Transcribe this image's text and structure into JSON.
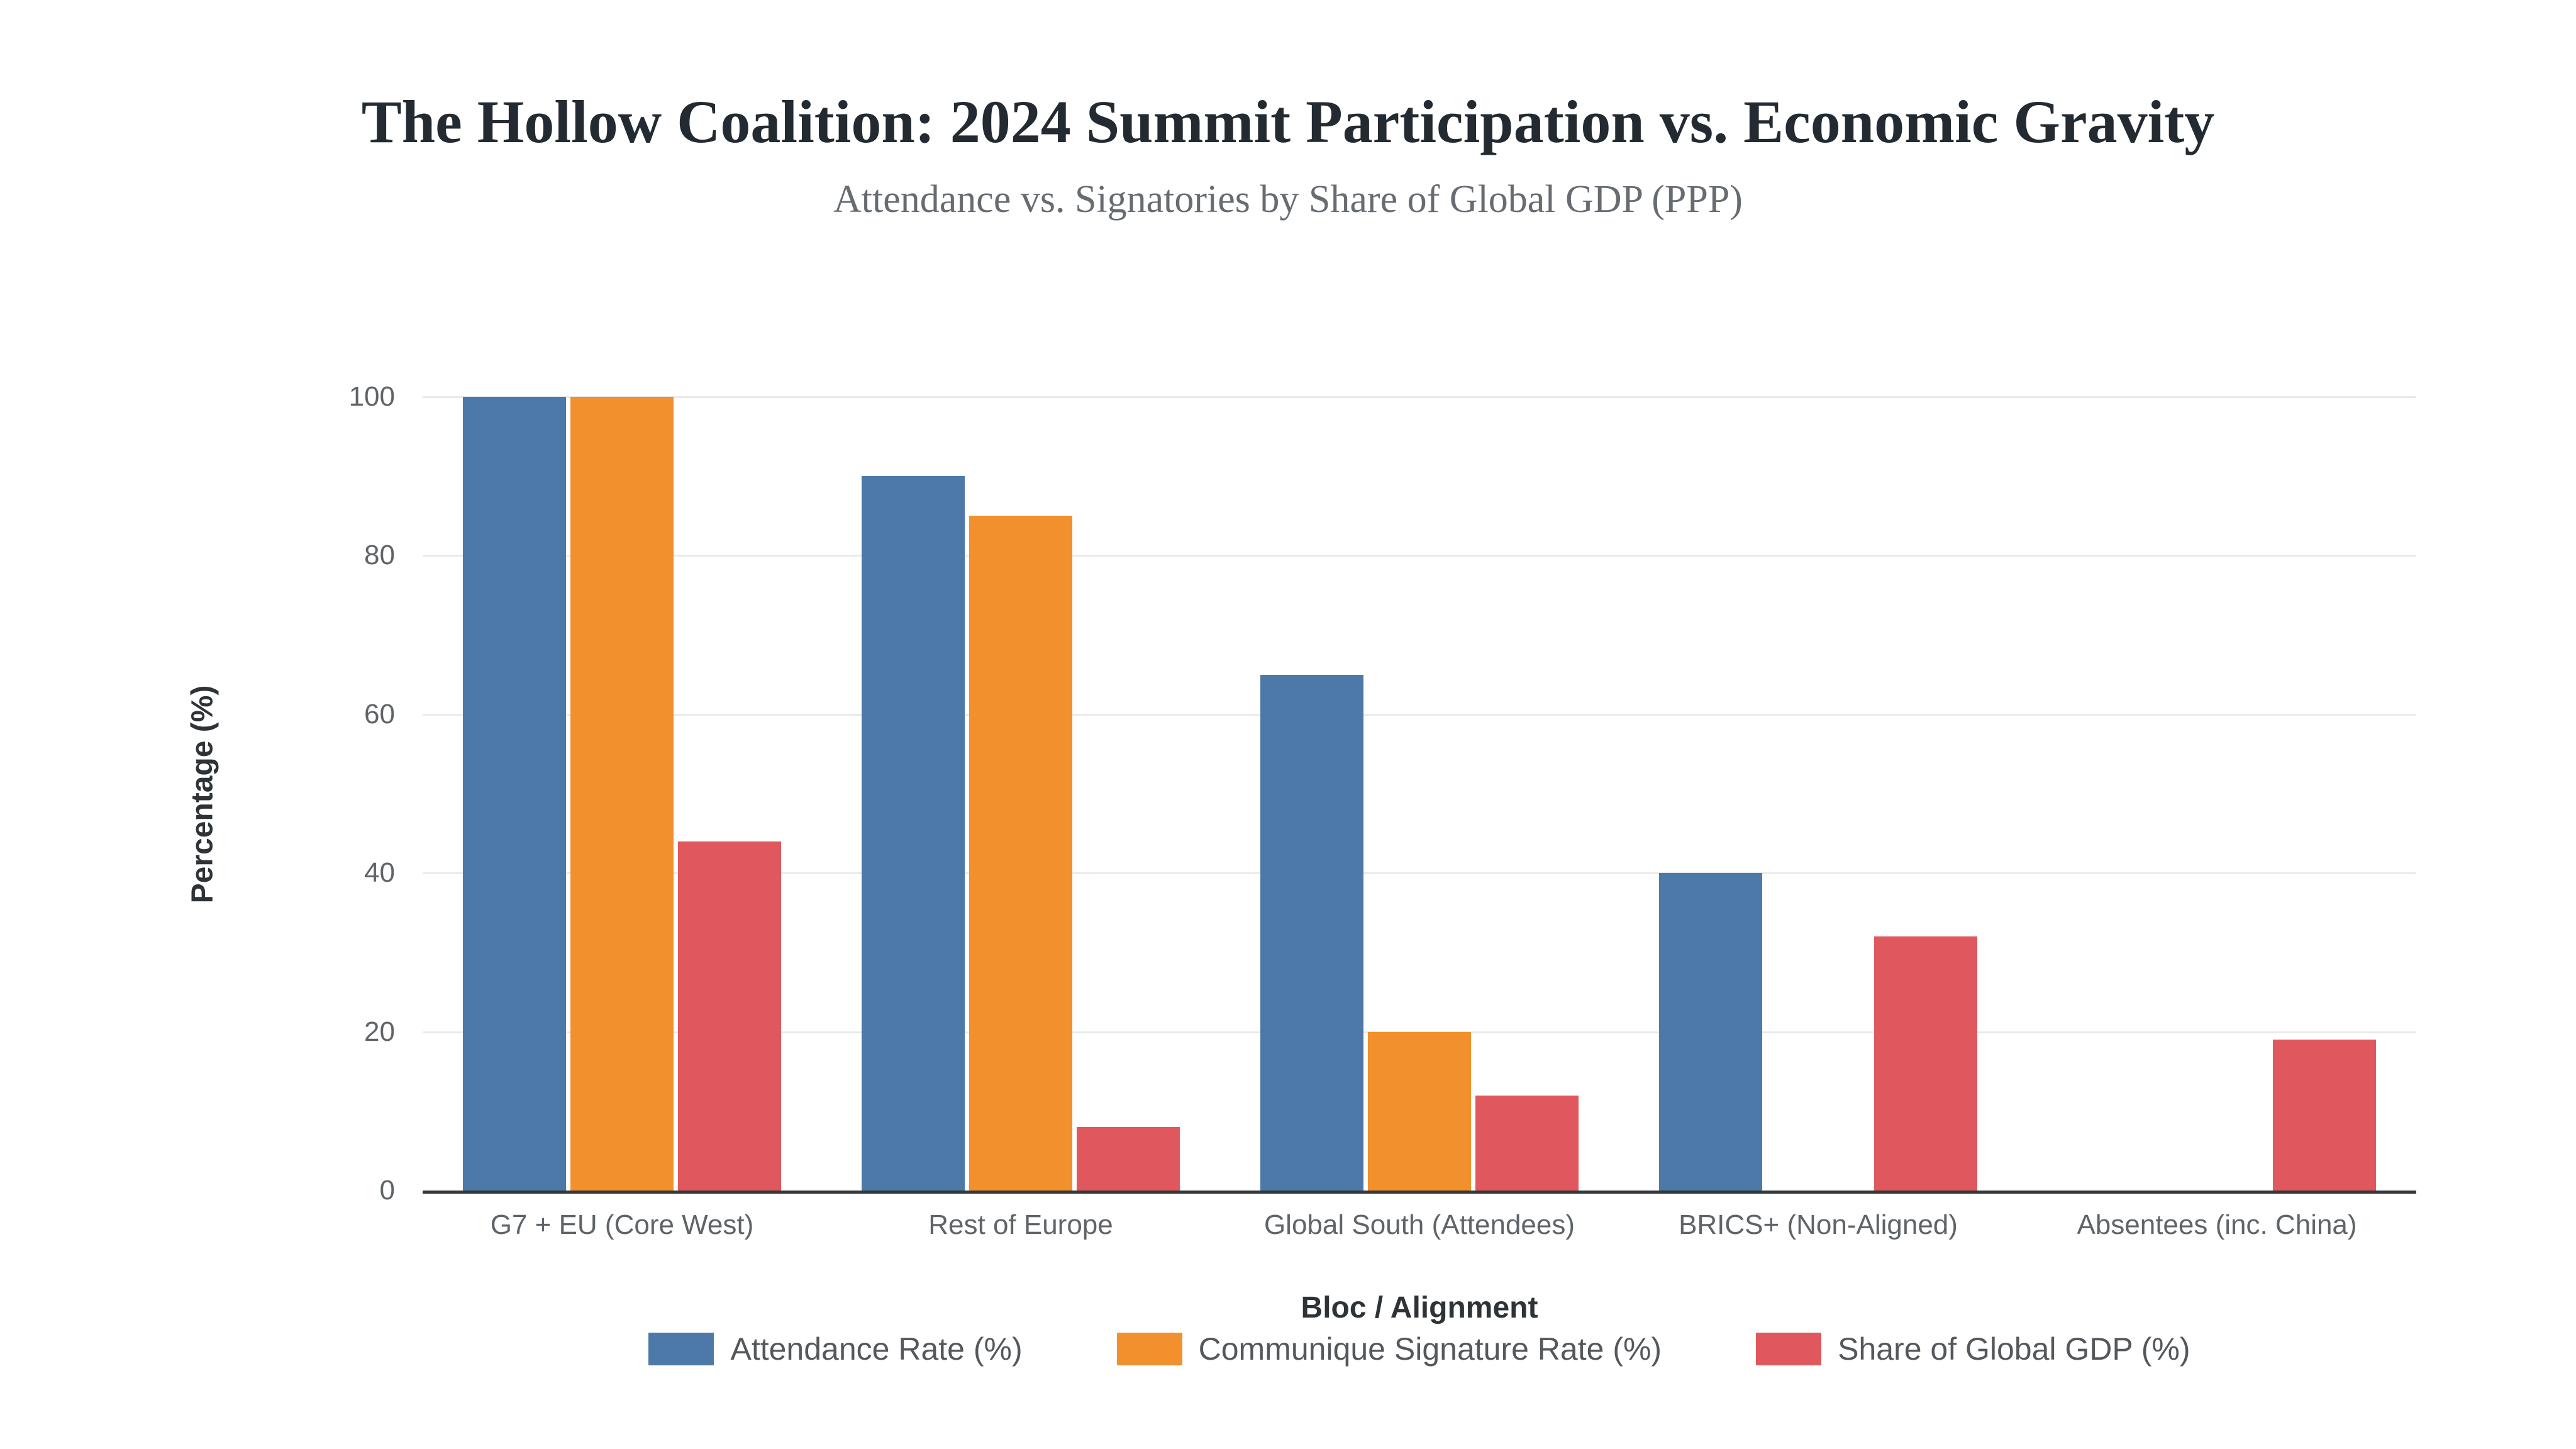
{
  "title": "The Hollow Coalition: 2024 Summit Participation vs. Economic Gravity",
  "subtitle": "Attendance vs. Signatories by Share of Global GDP (PPP)",
  "chart_data": {
    "type": "bar",
    "title": "The Hollow Coalition: 2024 Summit Participation vs. Economic Gravity",
    "subtitle": "Attendance vs. Signatories by Share of Global GDP (PPP)",
    "categories": [
      "G7 + EU (Core West)",
      "Rest of Europe",
      "Global South (Attendees)",
      "BRICS+ (Non-Aligned)",
      "Absentees (inc. China)"
    ],
    "series": [
      {
        "name": "Attendance Rate (%)",
        "color": "#4d79a8",
        "values": [
          100,
          90,
          65,
          40,
          0
        ]
      },
      {
        "name": "Communique Signature Rate (%)",
        "color": "#f1902d",
        "values": [
          100,
          85,
          20,
          0,
          0
        ]
      },
      {
        "name": "Share of Global GDP (%)",
        "color": "#e0585e",
        "values": [
          44,
          8,
          12,
          32,
          19
        ]
      }
    ],
    "xlabel": "Bloc / Alignment",
    "ylabel": "Percentage (%)",
    "ylim": [
      0,
      100
    ],
    "yticks": [
      0,
      20,
      40,
      60,
      80,
      100
    ],
    "grid": "horizontal",
    "legend_position": "bottom"
  },
  "colors": {
    "background": "#ffffff",
    "gridline": "#e8eaed",
    "axis_line": "#33373a",
    "title_text": "#232a31",
    "subtitle_text": "#666c72",
    "tick_text": "#5e6468",
    "legend_text": "#54585c"
  }
}
